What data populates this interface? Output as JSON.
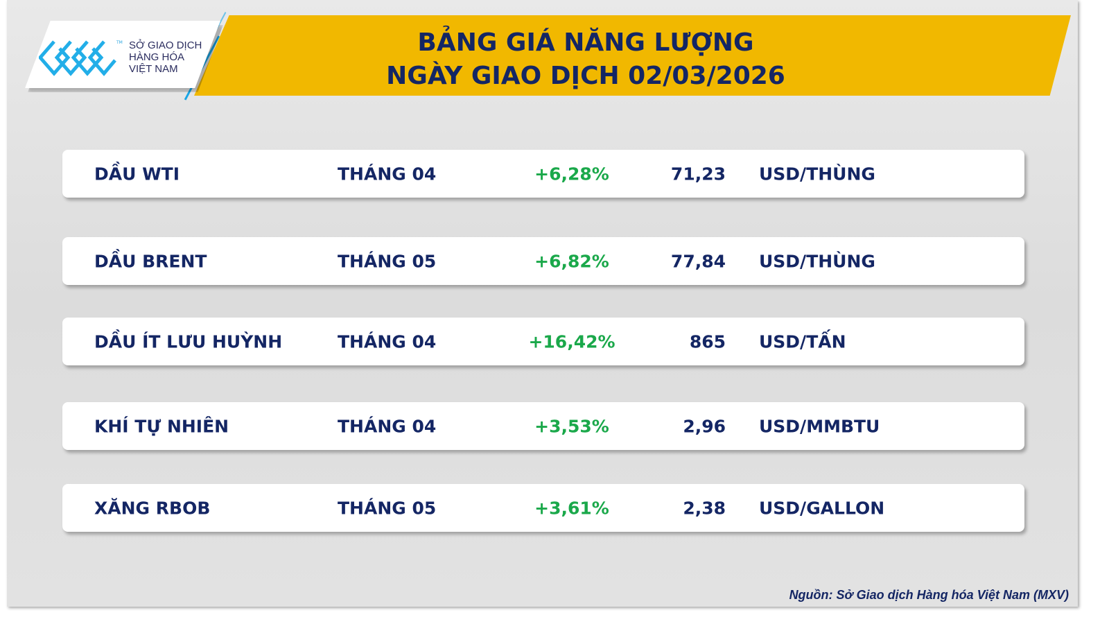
{
  "header": {
    "title_line1": "BẢNG GIÁ NĂNG LƯỢNG",
    "title_line2": "NGÀY GIAO DỊCH 02/03/2026"
  },
  "logo": {
    "line1": "SỞ GIAO DỊCH",
    "line2": "HÀNG HÓA",
    "line3": "VIỆT NAM",
    "tm": "TM"
  },
  "colors": {
    "navy": "#142664",
    "accent": "#f1b800",
    "positive": "#1aa84a",
    "logo_blue": "#1aa6e6"
  },
  "rows": [
    {
      "name": "DẦU WTI",
      "month": "THÁNG 04",
      "change": "+6,28%",
      "price": "71,23",
      "unit": "USD/THÙNG"
    },
    {
      "name": "DẦU BRENT",
      "month": "THÁNG 05",
      "change": "+6,82%",
      "price": "77,84",
      "unit": "USD/THÙNG"
    },
    {
      "name": "DẦU ÍT LƯU HUỲNH",
      "month": "THÁNG 04",
      "change": "+16,42%",
      "price": "865",
      "unit": "USD/TẤN"
    },
    {
      "name": "KHÍ TỰ NHIÊN",
      "month": "THÁNG 04",
      "change": "+3,53%",
      "price": "2,96",
      "unit": "USD/MMBTU"
    },
    {
      "name": "XĂNG RBOB",
      "month": "THÁNG 05",
      "change": "+3,61%",
      "price": "2,38",
      "unit": "USD/GALLON"
    }
  ],
  "footer": {
    "source": "Nguồn: Sở Giao dịch Hàng hóa Việt Nam (MXV)"
  }
}
